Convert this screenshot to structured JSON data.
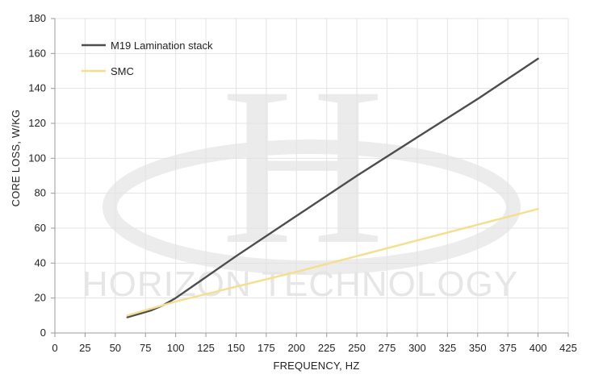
{
  "watermark": {
    "letter": "H",
    "text": "HORIZON TECHNOLOGY"
  },
  "colors": {
    "m19": "#4d4d4d",
    "smc": "#f5de8c",
    "grid": "#e3e3e3",
    "axis": "#9a9a9a",
    "watermark": "#e8e8e8"
  },
  "chart_data": {
    "type": "line",
    "title": "",
    "xlabel": "FREQUENCY, HZ",
    "ylabel": "CORE LOSS, W/KG",
    "xlim": [
      0,
      425
    ],
    "ylim": [
      0,
      180
    ],
    "xticks": [
      0,
      25,
      50,
      75,
      100,
      125,
      150,
      175,
      200,
      225,
      250,
      275,
      300,
      325,
      350,
      375,
      400,
      425
    ],
    "yticks": [
      0,
      20,
      40,
      60,
      80,
      100,
      120,
      140,
      160,
      180
    ],
    "grid": true,
    "legend": "top-left",
    "series": [
      {
        "name": "M19 Lamination stack",
        "color": "#4d4d4d",
        "x": [
          60,
          70,
          80,
          90,
          100,
          150,
          200,
          250,
          300,
          350,
          400
        ],
        "y": [
          9,
          11,
          13,
          16,
          20,
          44,
          67,
          90,
          112,
          134,
          157
        ]
      },
      {
        "name": "SMC",
        "color": "#f5de8c",
        "x": [
          60,
          100,
          150,
          200,
          250,
          300,
          350,
          400
        ],
        "y": [
          10,
          18,
          26.5,
          35,
          44,
          53,
          62,
          71
        ]
      }
    ]
  }
}
